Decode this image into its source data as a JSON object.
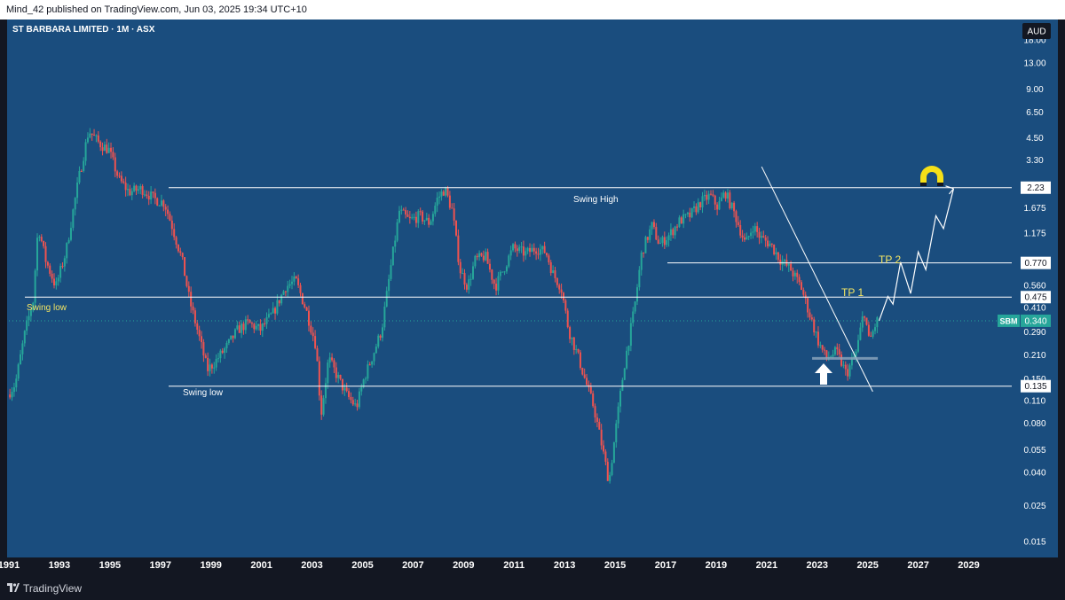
{
  "header": {
    "publish_info": "Mind_42 published on TradingView.com, Jun 03, 2025 19:34 UTC+10"
  },
  "chart_header": {
    "symbol_title": "ST BARBARA LIMITED · 1M · ASX",
    "currency": "AUD"
  },
  "footer": {
    "brand": "TradingView"
  },
  "colors": {
    "background": "#1a4d7e",
    "frame": "#131722",
    "bull_candle": "#26a69a",
    "bear_candle": "#ef5350",
    "annotation_line": "#ffffff",
    "tp_text": "#f5e663",
    "magnet_icon": "#f5e018",
    "price_badge": "#26a69a"
  },
  "annotations": {
    "swing_high": "Swing High",
    "swing_low_upper": "Swing low",
    "swing_low_lower": "Swing low",
    "tp1": "TP 1",
    "tp2": "TP 2",
    "arrow_icon": "up-arrow-icon",
    "magnet_icon": "magnet-icon"
  },
  "price_labels": [
    {
      "value": 2.23,
      "text": "2.23"
    },
    {
      "value": 0.77,
      "text": "0.770"
    },
    {
      "value": 0.475,
      "text": "0.475"
    },
    {
      "value": 0.135,
      "text": "0.135"
    }
  ],
  "current_price": {
    "symbol": "SBM",
    "text": "0.340",
    "value": 0.34
  },
  "chart_data": {
    "type": "candlestick",
    "title": "ST BARBARA LIMITED · 1M · ASX",
    "currency": "AUD",
    "interval": "1M",
    "y_scale": "log",
    "ylim": [
      0.012,
      24
    ],
    "xlim": [
      1991,
      2030
    ],
    "y_ticks": [
      {
        "value": 18,
        "label": "18.00"
      },
      {
        "value": 13,
        "label": "13.00"
      },
      {
        "value": 9,
        "label": "9.00"
      },
      {
        "value": 6.5,
        "label": "6.50"
      },
      {
        "value": 4.5,
        "label": "4.50"
      },
      {
        "value": 3.3,
        "label": "3.30"
      },
      {
        "value": 1.675,
        "label": "1.675"
      },
      {
        "value": 1.175,
        "label": "1.175"
      },
      {
        "value": 0.56,
        "label": "0.560"
      },
      {
        "value": 0.41,
        "label": "0.410"
      },
      {
        "value": 0.29,
        "label": "0.290"
      },
      {
        "value": 0.21,
        "label": "0.210"
      },
      {
        "value": 0.15,
        "label": "0.150"
      },
      {
        "value": 0.11,
        "label": "0.110"
      },
      {
        "value": 0.08,
        "label": "0.080"
      },
      {
        "value": 0.055,
        "label": "0.055"
      },
      {
        "value": 0.04,
        "label": "0.040"
      },
      {
        "value": 0.025,
        "label": "0.025"
      },
      {
        "value": 0.015,
        "label": "0.015"
      }
    ],
    "x_ticks": [
      "1991",
      "1993",
      "1995",
      "1997",
      "1999",
      "2001",
      "2003",
      "2005",
      "2007",
      "2009",
      "2011",
      "2013",
      "2015",
      "2017",
      "2019",
      "2021",
      "2023",
      "2025",
      "2027",
      "2029"
    ],
    "price_path": [
      [
        1991.0,
        0.12
      ],
      [
        1991.3,
        0.14
      ],
      [
        1991.7,
        0.3
      ],
      [
        1992.0,
        0.45
      ],
      [
        1992.2,
        1.3
      ],
      [
        1992.5,
        0.8
      ],
      [
        1992.9,
        0.55
      ],
      [
        1993.3,
        0.9
      ],
      [
        1993.8,
        2.5
      ],
      [
        1994.2,
        5.0
      ],
      [
        1994.6,
        4.2
      ],
      [
        1995.0,
        3.8
      ],
      [
        1995.4,
        2.5
      ],
      [
        1995.8,
        2.1
      ],
      [
        1996.3,
        2.2
      ],
      [
        1996.8,
        1.9
      ],
      [
        1997.2,
        1.8
      ],
      [
        1997.5,
        1.3
      ],
      [
        1997.9,
        0.8
      ],
      [
        1998.2,
        0.45
      ],
      [
        1998.5,
        0.3
      ],
      [
        1998.9,
        0.17
      ],
      [
        1999.2,
        0.19
      ],
      [
        1999.7,
        0.24
      ],
      [
        2000.1,
        0.3
      ],
      [
        2000.5,
        0.33
      ],
      [
        2001.0,
        0.3
      ],
      [
        2001.5,
        0.38
      ],
      [
        2002.0,
        0.55
      ],
      [
        2002.4,
        0.6
      ],
      [
        2002.8,
        0.4
      ],
      [
        2003.2,
        0.24
      ],
      [
        2003.4,
        0.09
      ],
      [
        2003.7,
        0.2
      ],
      [
        2004.0,
        0.16
      ],
      [
        2004.4,
        0.12
      ],
      [
        2004.8,
        0.1
      ],
      [
        2005.1,
        0.15
      ],
      [
        2005.5,
        0.22
      ],
      [
        2005.8,
        0.3
      ],
      [
        2006.2,
        0.8
      ],
      [
        2006.5,
        1.6
      ],
      [
        2006.9,
        1.4
      ],
      [
        2007.3,
        1.5
      ],
      [
        2007.7,
        1.35
      ],
      [
        2008.0,
        1.9
      ],
      [
        2008.3,
        2.2
      ],
      [
        2008.6,
        1.6
      ],
      [
        2008.9,
        0.7
      ],
      [
        2009.2,
        0.55
      ],
      [
        2009.5,
        0.8
      ],
      [
        2009.9,
        0.85
      ],
      [
        2010.3,
        0.55
      ],
      [
        2010.7,
        0.75
      ],
      [
        2011.0,
        0.95
      ],
      [
        2011.5,
        0.88
      ],
      [
        2011.9,
        0.95
      ],
      [
        2012.3,
        0.9
      ],
      [
        2012.6,
        0.65
      ],
      [
        2012.9,
        0.55
      ],
      [
        2013.2,
        0.3
      ],
      [
        2013.6,
        0.2
      ],
      [
        2013.9,
        0.14
      ],
      [
        2014.2,
        0.1
      ],
      [
        2014.5,
        0.06
      ],
      [
        2014.8,
        0.035
      ],
      [
        2015.1,
        0.08
      ],
      [
        2015.4,
        0.18
      ],
      [
        2015.8,
        0.4
      ],
      [
        2016.1,
        0.9
      ],
      [
        2016.5,
        1.3
      ],
      [
        2016.8,
        1.0
      ],
      [
        2017.2,
        1.15
      ],
      [
        2017.6,
        1.4
      ],
      [
        2018.0,
        1.5
      ],
      [
        2018.4,
        1.8
      ],
      [
        2018.8,
        2.0
      ],
      [
        2019.1,
        1.7
      ],
      [
        2019.4,
        2.1
      ],
      [
        2019.8,
        1.5
      ],
      [
        2020.2,
        1.0
      ],
      [
        2020.5,
        1.3
      ],
      [
        2020.8,
        1.1
      ],
      [
        2021.2,
        1.0
      ],
      [
        2021.6,
        0.8
      ],
      [
        2022.0,
        0.7
      ],
      [
        2022.4,
        0.55
      ],
      [
        2022.8,
        0.35
      ],
      [
        2023.1,
        0.25
      ],
      [
        2023.4,
        0.2
      ],
      [
        2023.8,
        0.22
      ],
      [
        2024.2,
        0.16
      ],
      [
        2024.6,
        0.22
      ],
      [
        2024.9,
        0.4
      ],
      [
        2025.1,
        0.25
      ],
      [
        2025.4,
        0.34
      ]
    ],
    "swing_high_level": 2.23,
    "resistance_levels": [
      0.77,
      0.475
    ],
    "swing_low_level": 0.135,
    "projection_path": [
      [
        2025.45,
        0.34
      ],
      [
        2025.8,
        0.48
      ],
      [
        2026.0,
        0.43
      ],
      [
        2026.3,
        0.78
      ],
      [
        2026.7,
        0.5
      ],
      [
        2027.0,
        0.9
      ],
      [
        2027.3,
        0.7
      ],
      [
        2027.7,
        1.5
      ],
      [
        2028.0,
        1.25
      ],
      [
        2028.4,
        2.2
      ]
    ],
    "trendline": [
      [
        2020.8,
        3.0
      ],
      [
        2025.2,
        0.125
      ]
    ],
    "accumulation_zone": {
      "x": [
        2022.8,
        2025.4
      ],
      "y": 0.2
    }
  }
}
